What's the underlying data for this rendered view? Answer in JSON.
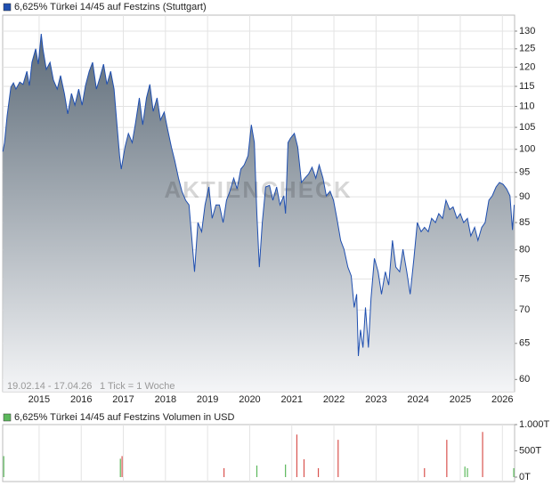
{
  "chart_data": [
    {
      "type": "line",
      "title": "6,625% Türkei 14/45 auf Festzins (Stuttgart)",
      "color": "#1f4fb0",
      "fill_top": "#5d6b78",
      "fill_bottom": "#f4f5f7",
      "log": true,
      "grid": true,
      "watermark": "AKTIENCHECK",
      "annotations": [
        "19.02.14 - 17.04.26",
        "1 Tick = 1 Woche"
      ],
      "xlim": [
        2014.135,
        2026.29
      ],
      "xticks": [
        2015,
        2016,
        2017,
        2018,
        2019,
        2020,
        2021,
        2022,
        2023,
        2024,
        2025,
        2026
      ],
      "ylim": [
        58.4,
        134.7
      ],
      "yticks": [
        60,
        65,
        70,
        75,
        80,
        85,
        90,
        95,
        100,
        105,
        110,
        115,
        120,
        125,
        130
      ],
      "x": [
        2014.14,
        2014.18,
        2014.24,
        2014.33,
        2014.39,
        2014.45,
        2014.54,
        2014.62,
        2014.71,
        2014.77,
        2014.83,
        2014.92,
        2014.98,
        2015.05,
        2015.09,
        2015.17,
        2015.26,
        2015.34,
        2015.43,
        2015.51,
        2015.6,
        2015.68,
        2015.77,
        2015.85,
        2015.94,
        2016.02,
        2016.1,
        2016.19,
        2016.27,
        2016.36,
        2016.44,
        2016.53,
        2016.61,
        2016.7,
        2016.78,
        2016.85,
        2016.91,
        2016.95,
        2017.04,
        2017.12,
        2017.21,
        2017.29,
        2017.38,
        2017.46,
        2017.55,
        2017.63,
        2017.71,
        2017.8,
        2017.88,
        2017.97,
        2018.05,
        2018.14,
        2018.22,
        2018.31,
        2018.39,
        2018.48,
        2018.56,
        2018.62,
        2018.69,
        2018.77,
        2018.86,
        2018.94,
        2019.03,
        2019.11,
        2019.2,
        2019.28,
        2019.37,
        2019.45,
        2019.53,
        2019.62,
        2019.7,
        2019.79,
        2019.87,
        2019.96,
        2020.04,
        2020.11,
        2020.17,
        2020.23,
        2020.3,
        2020.38,
        2020.47,
        2020.55,
        2020.64,
        2020.72,
        2020.81,
        2020.85,
        2020.91,
        2020.97,
        2021.06,
        2021.14,
        2021.23,
        2021.31,
        2021.4,
        2021.48,
        2021.57,
        2021.65,
        2021.74,
        2021.82,
        2021.91,
        2021.99,
        2022.07,
        2022.16,
        2022.24,
        2022.33,
        2022.41,
        2022.48,
        2022.54,
        2022.58,
        2022.63,
        2022.69,
        2022.75,
        2022.82,
        2022.88,
        2022.96,
        2023.05,
        2023.13,
        2023.22,
        2023.3,
        2023.39,
        2023.47,
        2023.56,
        2023.64,
        2023.73,
        2023.81,
        2023.9,
        2023.98,
        2024.07,
        2024.15,
        2024.24,
        2024.32,
        2024.41,
        2024.49,
        2024.58,
        2024.66,
        2024.75,
        2024.83,
        2024.92,
        2025.0,
        2025.08,
        2025.17,
        2025.25,
        2025.34,
        2025.42,
        2025.51,
        2025.59,
        2025.68,
        2025.76,
        2025.85,
        2025.93,
        2026.02,
        2026.1,
        2026.18,
        2026.24,
        2026.28
      ],
      "values": [
        99.5,
        101.5,
        107.7,
        114.8,
        115.9,
        114.3,
        116.1,
        115.5,
        118.9,
        115.2,
        121.3,
        125.0,
        120.8,
        129.2,
        125.0,
        119.4,
        121.3,
        116.6,
        114.3,
        117.8,
        113.2,
        108.2,
        113.2,
        110.3,
        114.3,
        110.3,
        115.2,
        118.9,
        121.3,
        114.3,
        117.1,
        120.8,
        115.5,
        118.9,
        114.3,
        105.6,
        98.6,
        95.7,
        100.5,
        103.6,
        101.5,
        106.0,
        112.1,
        105.6,
        112.1,
        115.5,
        108.8,
        112.1,
        106.7,
        108.6,
        104.6,
        100.5,
        97.6,
        93.8,
        91.1,
        89.3,
        88.4,
        82.5,
        76.2,
        85.0,
        83.3,
        88.4,
        92.0,
        85.8,
        88.4,
        88.4,
        85.0,
        89.3,
        91.1,
        93.8,
        91.6,
        95.7,
        96.6,
        98.6,
        105.6,
        101.5,
        86.7,
        77.0,
        85.0,
        92.0,
        92.3,
        89.3,
        92.0,
        88.4,
        90.2,
        86.7,
        101.5,
        102.5,
        103.6,
        100.5,
        92.9,
        93.8,
        94.7,
        96.1,
        93.8,
        96.6,
        93.8,
        90.2,
        91.1,
        89.3,
        85.8,
        81.7,
        80.1,
        77.0,
        75.5,
        70.4,
        72.5,
        63.2,
        67.0,
        64.4,
        70.4,
        64.4,
        71.8,
        78.5,
        76.2,
        72.5,
        76.2,
        74.0,
        81.7,
        77.0,
        76.2,
        80.1,
        76.2,
        72.5,
        78.5,
        85.0,
        83.3,
        84.1,
        83.3,
        85.8,
        85.0,
        86.7,
        85.8,
        89.3,
        87.5,
        88.0,
        85.8,
        86.7,
        85.0,
        85.8,
        82.5,
        84.1,
        81.7,
        84.1,
        85.0,
        89.3,
        90.2,
        92.0,
        92.9,
        92.5,
        91.6,
        90.2,
        83.6,
        88.4
      ]
    },
    {
      "type": "bar",
      "title": "6,625% Türkei 14/45 auf Festzins Volumen in USD",
      "color": "#5cb85c",
      "grid": true,
      "xlim": [
        2014.135,
        2026.29
      ],
      "xticks": [
        2015,
        2016,
        2017,
        2018,
        2019,
        2020,
        2021,
        2022,
        2023,
        2024,
        2025,
        2026
      ],
      "ylim": [
        0,
        1000
      ],
      "yticks": [
        {
          "value": 0,
          "label": "0T"
        },
        {
          "value": 500,
          "label": "500T"
        },
        {
          "value": 1000,
          "label": "1.000T"
        }
      ],
      "x": [
        2014.16,
        2016.93,
        2016.97,
        2019.39,
        2020.17,
        2020.85,
        2021.12,
        2021.29,
        2021.63,
        2022.1,
        2024.15,
        2024.68,
        2025.11,
        2025.17,
        2025.53,
        2026.27
      ],
      "values": [
        400,
        350,
        400,
        170,
        220,
        240,
        810,
        340,
        170,
        710,
        170,
        710,
        200,
        170,
        860,
        170
      ],
      "colors": [
        "#5cb85c",
        "#5cb85c",
        "#d9534f",
        "#d9534f",
        "#5cb85c",
        "#5cb85c",
        "#d9534f",
        "#d9534f",
        "#d9534f",
        "#d9534f",
        "#d9534f",
        "#d9534f",
        "#5cb85c",
        "#5cb85c",
        "#d9534f",
        "#5cb85c"
      ]
    }
  ]
}
